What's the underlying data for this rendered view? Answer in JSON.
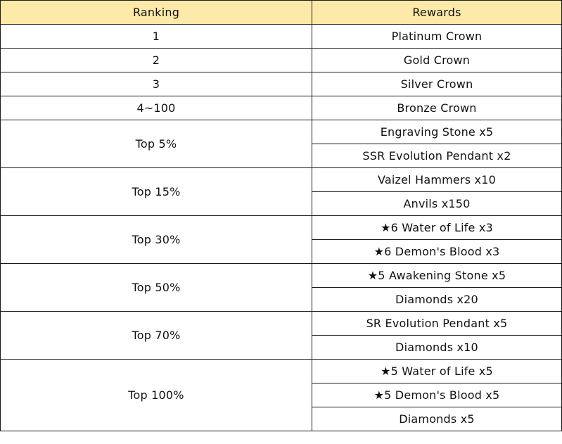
{
  "header": {
    "ranking_label": "Ranking",
    "rewards_label": "Rewards",
    "background": "#fde9a8"
  },
  "rows": [
    {
      "rank": "1",
      "rewards": [
        "Platinum Crown"
      ]
    },
    {
      "rank": "2",
      "rewards": [
        "Gold Crown"
      ]
    },
    {
      "rank": "3",
      "rewards": [
        "Silver Crown"
      ]
    },
    {
      "rank": "4~100",
      "rewards": [
        "Bronze Crown"
      ]
    },
    {
      "rank": "Top 5%",
      "rewards": [
        "Engraving Stone x5",
        "SSR Evolution Pendant x2"
      ]
    },
    {
      "rank": "Top 15%",
      "rewards": [
        "Vaizel Hammers x10",
        "Anvils x150"
      ]
    },
    {
      "rank": "Top 30%",
      "rewards": [
        "★6 Water of Life x3",
        "★6 Demon's Blood x3"
      ]
    },
    {
      "rank": "Top 50%",
      "rewards": [
        "★5 Awakening Stone x5",
        "Diamonds x20"
      ]
    },
    {
      "rank": "Top 70%",
      "rewards": [
        "SR Evolution Pendant x5",
        "Diamonds x10"
      ]
    },
    {
      "rank": "Top 100%",
      "rewards": [
        "★5 Water of Life x5",
        "★5 Demon's Blood x5",
        "Diamonds x5"
      ]
    }
  ]
}
